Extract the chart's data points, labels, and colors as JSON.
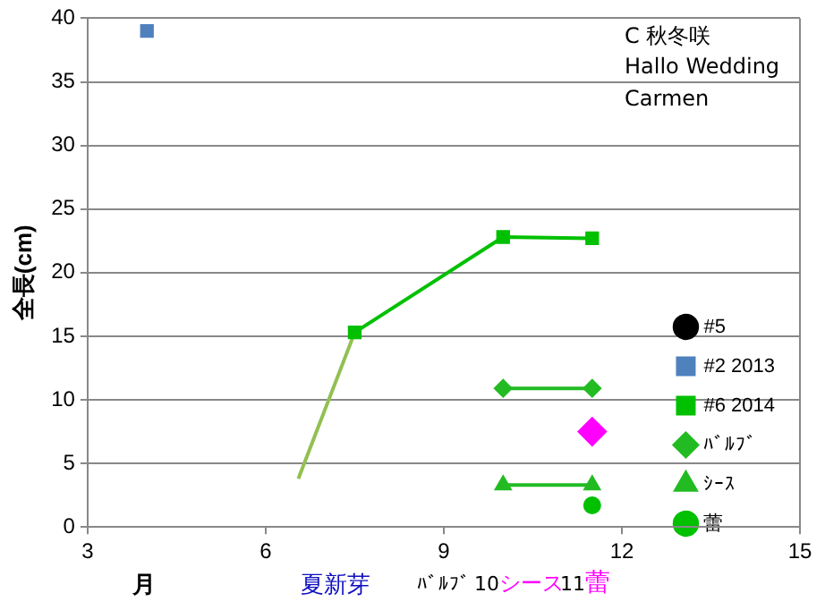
{
  "chart_data": {
    "type": "line",
    "ylabel": "全長(cm)",
    "xlabel": "月",
    "xlim": [
      3,
      15
    ],
    "xticks": [
      3,
      6,
      9,
      12,
      15
    ],
    "ylim": [
      0,
      40
    ],
    "yticks": [
      0,
      5,
      10,
      15,
      20,
      25,
      30,
      35,
      40
    ],
    "grid": "y",
    "legend": "right",
    "annotations": [
      "C  秋冬咲",
      "Hallo Wedding",
      "Carmen",
      "夏新芽",
      "ﾊﾞﾙﾌﾞ",
      "10",
      "シース",
      "11",
      "蕾"
    ],
    "series": [
      {
        "name": "#5",
        "color": "#000000",
        "marker": "circle"
      },
      {
        "name": "#2 2013",
        "color": "#4f81bd",
        "marker": "square",
        "x": [
          4
        ],
        "values": [
          39
        ]
      },
      {
        "name": "#6 2014",
        "color": "#00c000",
        "marker": "square",
        "x": [
          7.5,
          10,
          11.5
        ],
        "values": [
          15.3,
          22.8,
          22.7
        ]
      },
      {
        "name": "ﾊﾞﾙﾌﾞ",
        "color": "#22bb22",
        "marker": "diamond",
        "x": [
          10,
          11.5
        ],
        "values": [
          10.9,
          10.9
        ]
      },
      {
        "name": "ｼｰｽ",
        "color": "#22bb22",
        "marker": "triangle",
        "x": [
          10,
          11.5
        ],
        "values": [
          3.3,
          3.3
        ]
      },
      {
        "name": "蕾",
        "color": "#00c000",
        "marker": "circle",
        "x": [
          11.5
        ],
        "values": [
          1.7
        ]
      },
      {
        "color": "#92c050",
        "marker": "none",
        "x": [
          6.55,
          7.5
        ],
        "values": [
          3.8,
          15.3
        ]
      },
      {
        "color": "#ff00ff",
        "marker": "diamond",
        "x": [
          11.5
        ],
        "values": [
          7.5
        ]
      }
    ]
  }
}
